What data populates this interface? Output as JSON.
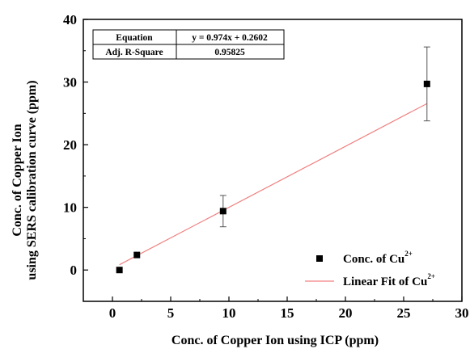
{
  "chart_data": {
    "type": "scatter",
    "xlabel": "Conc. of Copper Ion using ICP (ppm)",
    "ylabel_lines": [
      "Conc. of Copper Ion",
      "using SERS calibration curve (ppm)"
    ],
    "xlim": [
      -2.5,
      30
    ],
    "ylim": [
      -5,
      40
    ],
    "x_ticks": [
      0,
      5,
      10,
      15,
      20,
      25,
      30
    ],
    "y_ticks": [
      0,
      10,
      20,
      30,
      40
    ],
    "grid": false,
    "legend_position": "bottom-right",
    "series": [
      {
        "name": "Conc. of Cu",
        "name_superscript": "2+",
        "marker": "square",
        "color": "#000000",
        "x": [
          0.6,
          2.1,
          9.5,
          27.0
        ],
        "y": [
          0.0,
          2.4,
          9.4,
          29.7
        ],
        "error": [
          0,
          0,
          2.5,
          5.9
        ]
      },
      {
        "name": "Linear Fit of Cu",
        "name_superscript": "2+",
        "type": "line",
        "color": "#f08080",
        "x": [
          0.6,
          27.0
        ],
        "y": [
          0.84,
          26.56
        ],
        "slope": 0.974,
        "intercept": 0.2602
      }
    ],
    "stats_table": {
      "rows": [
        {
          "label": "Equation",
          "value": "y = 0.974x + 0.2602"
        },
        {
          "label": "Adj. R-Square",
          "value": "0.95825"
        }
      ]
    }
  }
}
